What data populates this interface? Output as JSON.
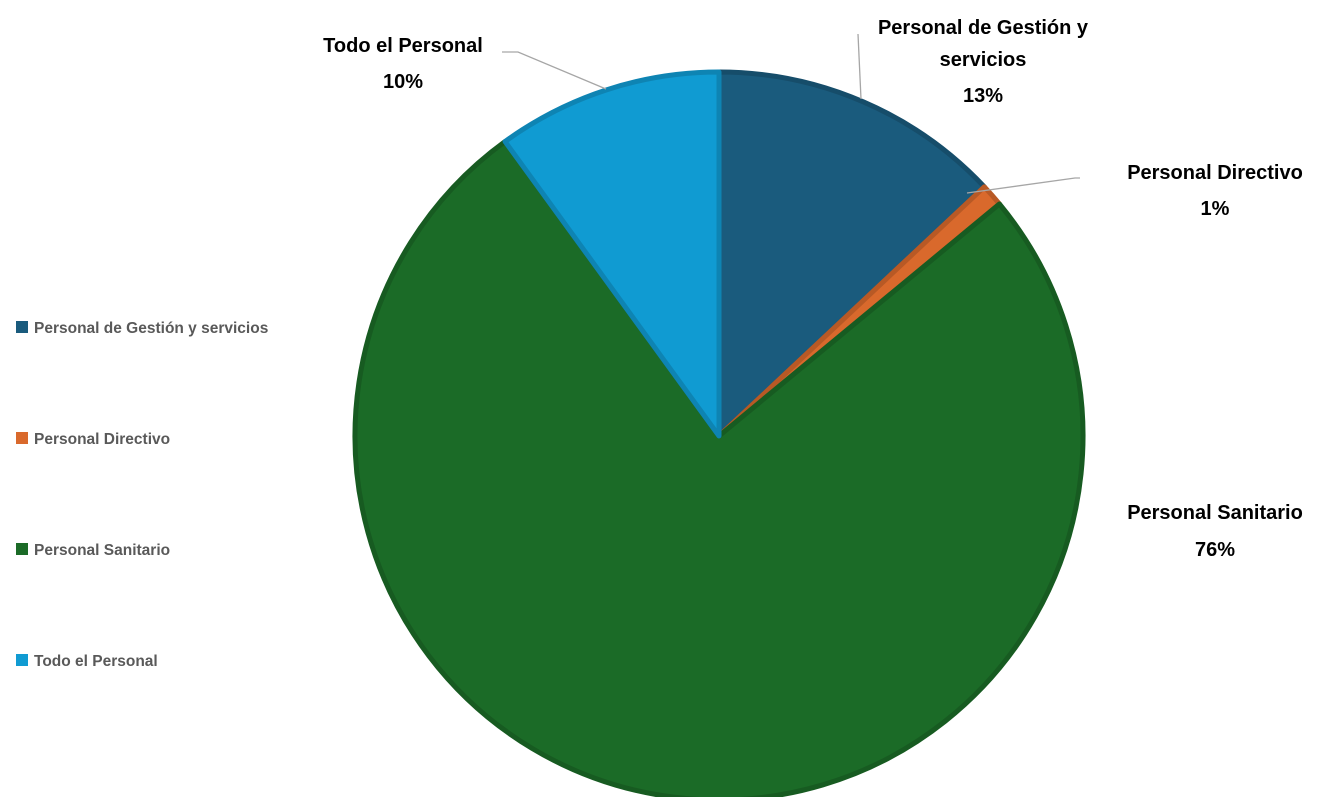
{
  "chart_data": {
    "type": "pie",
    "title": "",
    "slices": [
      {
        "label": "Personal de Gestión  y servicios",
        "value": 13,
        "value_label": "13%",
        "color": "#1a5b7d",
        "data_label_lines": [
          "Personal de Gestión  y",
          "servicios",
          "13%"
        ]
      },
      {
        "label": "Personal Directivo",
        "value": 1,
        "value_label": "1%",
        "color": "#d9692c",
        "data_label_lines": [
          "Personal Directivo",
          "1%"
        ]
      },
      {
        "label": "Personal Sanitario",
        "value": 76,
        "value_label": "76%",
        "color": "#1b6b27",
        "data_label_lines": [
          "Personal Sanitario",
          "76%"
        ]
      },
      {
        "label": "Todo el Personal",
        "value": 10,
        "value_label": "10%",
        "color": "#109bd2",
        "data_label_lines": [
          "Todo el Personal",
          "10%"
        ]
      }
    ],
    "start_angle": "12 o'clock",
    "direction": "clockwise",
    "legend": {
      "position": "left",
      "entries": [
        "Personal de Gestión  y servicios",
        "Personal Directivo",
        "Personal Sanitario",
        "Todo el Personal"
      ]
    }
  }
}
